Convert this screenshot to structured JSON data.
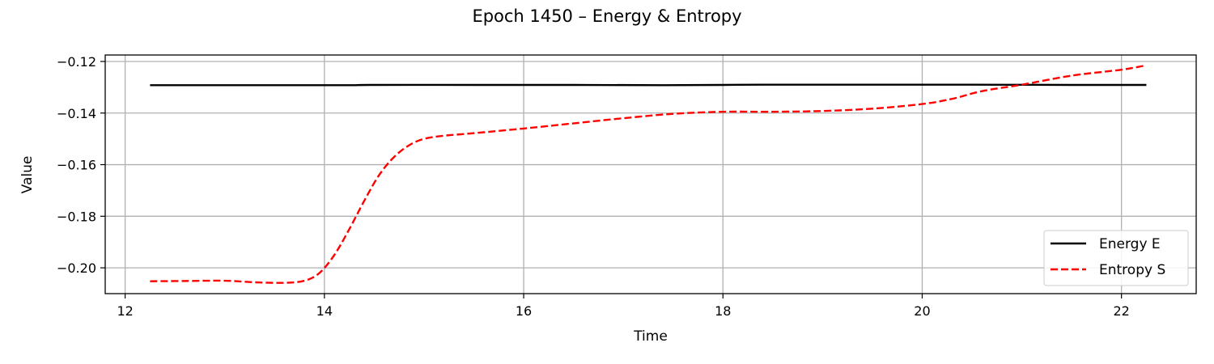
{
  "chart_data": {
    "type": "line",
    "title": "Epoch 1450 – Energy & Entropy",
    "xlabel": "Time",
    "ylabel": "Value",
    "xlim": [
      11.8,
      22.75
    ],
    "ylim": [
      -0.21,
      -0.1175
    ],
    "xticks": [
      12,
      14,
      16,
      18,
      20,
      22
    ],
    "yticks": [
      -0.2,
      -0.18,
      -0.16,
      -0.14,
      -0.12
    ],
    "xtick_labels": [
      "12",
      "14",
      "16",
      "18",
      "20",
      "22"
    ],
    "ytick_labels": [
      "−0.20",
      "−0.18",
      "−0.16",
      "−0.14",
      "−0.12"
    ],
    "grid": true,
    "legend": "lower-right",
    "series": [
      {
        "name": "Energy E",
        "color": "#000000",
        "style": "solid",
        "x": [
          12.25,
          13.0,
          14.2,
          14.45,
          15.5,
          16.5,
          17.4,
          18.0,
          18.4,
          19.5,
          20.5,
          21.5,
          22.25
        ],
        "y": [
          -0.1292,
          -0.1292,
          -0.1292,
          -0.1291,
          -0.1291,
          -0.1291,
          -0.1292,
          -0.1291,
          -0.129,
          -0.129,
          -0.129,
          -0.1291,
          -0.1291
        ]
      },
      {
        "name": "Entropy S",
        "color": "#ff0000",
        "style": "dashed",
        "x": [
          12.25,
          12.6,
          13.0,
          13.3,
          13.6,
          13.8,
          13.95,
          14.1,
          14.25,
          14.4,
          14.55,
          14.7,
          14.85,
          15.0,
          15.2,
          15.5,
          16.0,
          16.5,
          17.0,
          17.5,
          18.0,
          18.5,
          19.0,
          19.5,
          20.0,
          20.3,
          20.6,
          21.0,
          21.5,
          22.0,
          22.25
        ],
        "y": [
          -0.2052,
          -0.2051,
          -0.205,
          -0.2056,
          -0.2058,
          -0.205,
          -0.202,
          -0.195,
          -0.185,
          -0.174,
          -0.164,
          -0.157,
          -0.1525,
          -0.15,
          -0.1488,
          -0.1478,
          -0.146,
          -0.144,
          -0.142,
          -0.1403,
          -0.1395,
          -0.1395,
          -0.1392,
          -0.1383,
          -0.1365,
          -0.1345,
          -0.1315,
          -0.129,
          -0.1255,
          -0.1232,
          -0.1215
        ]
      }
    ]
  }
}
